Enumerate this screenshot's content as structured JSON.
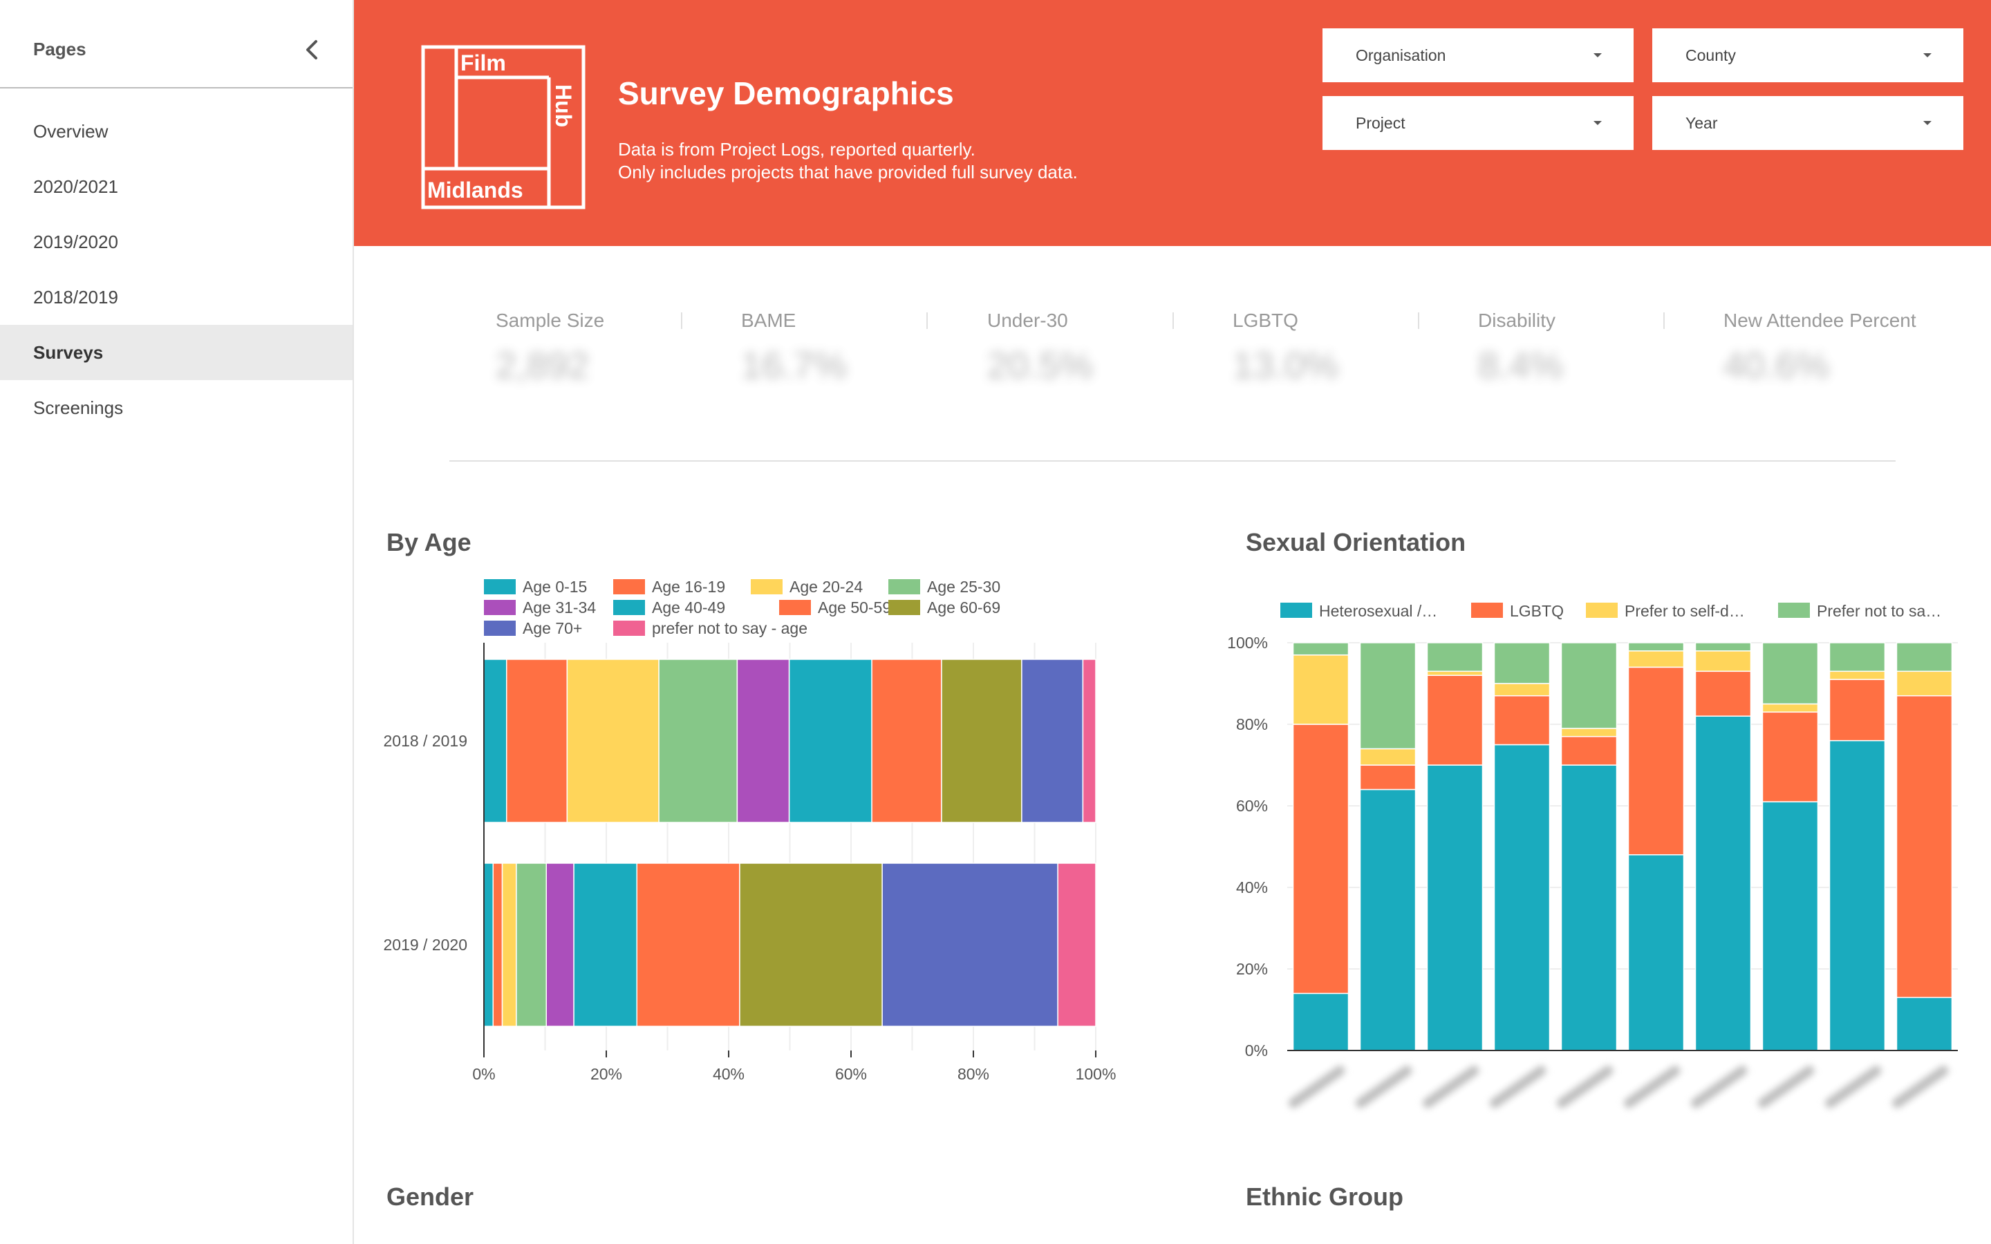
{
  "sidebar": {
    "title": "Pages",
    "items": [
      {
        "label": "Overview",
        "active": false
      },
      {
        "label": "2020/2021",
        "active": false
      },
      {
        "label": "2019/2020",
        "active": false
      },
      {
        "label": "2018/2019",
        "active": false
      },
      {
        "label": "Surveys",
        "active": true
      },
      {
        "label": "Screenings",
        "active": false
      }
    ]
  },
  "header": {
    "background": "#ee583f",
    "logo": {
      "words": [
        "Film",
        "Hub",
        "Midlands"
      ]
    },
    "title": "Survey Demographics",
    "subtitle_line1": "Data is from Project Logs, reported quarterly.",
    "subtitle_line2": "Only includes projects that have provided full survey data."
  },
  "filters": {
    "organisation": "Organisation",
    "county": "County",
    "project": "Project",
    "year": "Year"
  },
  "kpis": [
    {
      "label": "Sample Size",
      "value": "2,892"
    },
    {
      "label": "BAME",
      "value": "16.7%"
    },
    {
      "label": "Under-30",
      "value": "20.5%"
    },
    {
      "label": "LGBTQ",
      "value": "13.0%"
    },
    {
      "label": "Disability",
      "value": "8.4%"
    },
    {
      "label": "New Attendee Percent",
      "value": "40.6%"
    }
  ],
  "sections": {
    "age": "By Age",
    "orientation": "Sexual Orientation",
    "gender": "Gender",
    "ethnic": "Ethnic Group"
  },
  "chart_data": [
    {
      "type": "bar",
      "orientation": "horizontal",
      "stacked": "percent",
      "title": "By Age",
      "categories": [
        "2018 / 2019",
        "2019 / 2020"
      ],
      "series": [
        {
          "name": "Age 0-15",
          "color": "#1aabbe",
          "values": [
            3.7,
            1.5
          ]
        },
        {
          "name": "Age 16-19",
          "color": "#ff7043",
          "values": [
            9.9,
            1.5
          ]
        },
        {
          "name": "Age 20-24",
          "color": "#ffd55a",
          "values": [
            15.0,
            2.3
          ]
        },
        {
          "name": "Age 25-30",
          "color": "#86c788",
          "values": [
            12.8,
            4.9
          ]
        },
        {
          "name": "Age 31-34",
          "color": "#ab4fbb",
          "values": [
            8.5,
            4.5
          ]
        },
        {
          "name": "Age 40-49",
          "color": "#1aabbe",
          "values": [
            13.5,
            10.3
          ]
        },
        {
          "name": "Age 50-59",
          "color": "#ff7043",
          "values": [
            11.4,
            16.8
          ]
        },
        {
          "name": "Age 60-69",
          "color": "#9e9d33",
          "values": [
            13.1,
            23.3
          ]
        },
        {
          "name": "Age 70+",
          "color": "#5c6bc0",
          "values": [
            10.0,
            28.7
          ]
        },
        {
          "name": "prefer not to say - age",
          "color": "#f06292",
          "values": [
            2.1,
            6.2
          ]
        }
      ],
      "xlim": [
        0,
        100
      ],
      "x_ticks": [
        "0%",
        "20%",
        "40%",
        "60%",
        "80%",
        "100%"
      ],
      "legend": "top"
    },
    {
      "type": "bar",
      "orientation": "vertical",
      "stacked": "percent",
      "title": "Sexual Orientation",
      "categories": [
        "",
        "",
        "",
        "",
        "",
        "",
        "",
        "",
        "",
        ""
      ],
      "series": [
        {
          "name": "Heterosexual /…",
          "color": "#1aabbe",
          "values": [
            14,
            64,
            70,
            75,
            70,
            48,
            82,
            61,
            76,
            13
          ]
        },
        {
          "name": "LGBTQ",
          "color": "#ff7043",
          "values": [
            66,
            6,
            22,
            12,
            7,
            46,
            11,
            22,
            15,
            74
          ]
        },
        {
          "name": "Prefer to self-d…",
          "color": "#ffd55a",
          "values": [
            17,
            4,
            1,
            3,
            2,
            4,
            5,
            2,
            2,
            6
          ]
        },
        {
          "name": "Prefer not to sa…",
          "color": "#86c788",
          "values": [
            3,
            26,
            7,
            10,
            21,
            2,
            2,
            15,
            7,
            7
          ]
        }
      ],
      "ylim": [
        0,
        100
      ],
      "y_ticks": [
        "0%",
        "20%",
        "40%",
        "60%",
        "80%",
        "100%"
      ],
      "legend": "top"
    }
  ]
}
